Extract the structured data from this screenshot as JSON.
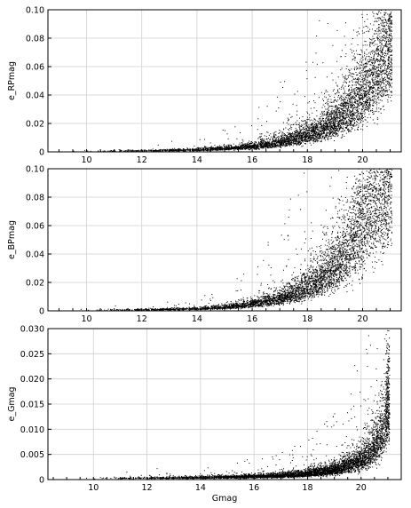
{
  "chart_data": [
    {
      "type": "scatter",
      "title": "",
      "xlabel": "",
      "ylabel": "e_RPmag",
      "xlim": [
        8.6,
        21.4
      ],
      "ylim": [
        0,
        0.1
      ],
      "xticks": [
        10,
        12,
        14,
        16,
        18,
        20
      ],
      "xtick_labels": [
        "10",
        "12",
        "14",
        "16",
        "18",
        "20"
      ],
      "yticks": [
        0,
        0.02,
        0.04,
        0.06,
        0.08,
        0.1
      ],
      "ytick_labels": [
        "0",
        "0.02",
        "0.04",
        "0.06",
        "0.08",
        "0.10"
      ],
      "grid": true,
      "point_color": "#000000",
      "trend": {
        "description": "error grows roughly exponentially with magnitude",
        "x": [
          9,
          12,
          14,
          15,
          16,
          17,
          18,
          19,
          19.5,
          20,
          20.5,
          21
        ],
        "y": [
          0.0005,
          0.0008,
          0.0015,
          0.0025,
          0.004,
          0.007,
          0.012,
          0.022,
          0.03,
          0.042,
          0.058,
          0.08
        ]
      }
    },
    {
      "type": "scatter",
      "title": "",
      "xlabel": "",
      "ylabel": "e_BPmag",
      "xlim": [
        8.6,
        21.4
      ],
      "ylim": [
        0,
        0.1
      ],
      "xticks": [
        10,
        12,
        14,
        16,
        18,
        20
      ],
      "xtick_labels": [
        "10",
        "12",
        "14",
        "16",
        "18",
        "20"
      ],
      "yticks": [
        0,
        0.02,
        0.04,
        0.06,
        0.08,
        0.1
      ],
      "ytick_labels": [
        "0",
        "0.02",
        "0.04",
        "0.06",
        "0.08",
        "0.10"
      ],
      "grid": true,
      "point_color": "#000000",
      "trend": {
        "description": "error grows roughly exponentially with magnitude",
        "x": [
          9,
          12,
          14,
          15,
          16,
          17,
          18,
          19,
          19.5,
          20,
          20.5,
          21
        ],
        "y": [
          0.0005,
          0.0008,
          0.0015,
          0.0025,
          0.005,
          0.009,
          0.017,
          0.032,
          0.045,
          0.065,
          0.085,
          0.1
        ]
      }
    },
    {
      "type": "scatter",
      "title": "",
      "xlabel": "Gmag",
      "ylabel": "e_Gmag",
      "xlim": [
        8.3,
        21.5
      ],
      "ylim": [
        0,
        0.03
      ],
      "xticks": [
        10,
        12,
        14,
        16,
        18,
        20
      ],
      "xtick_labels": [
        "10",
        "12",
        "14",
        "16",
        "18",
        "20"
      ],
      "yticks": [
        0,
        0.005,
        0.01,
        0.015,
        0.02,
        0.025,
        0.03
      ],
      "ytick_labels": [
        "0",
        "0.005",
        "0.010",
        "0.015",
        "0.020",
        "0.025",
        "0.030"
      ],
      "grid": true,
      "point_color": "#000000",
      "trend": {
        "description": "error rises slowly then steeply near G=21",
        "x": [
          9,
          12,
          14,
          16,
          17,
          18,
          19,
          19.5,
          20,
          20.5,
          20.8,
          21
        ],
        "y": [
          0.0002,
          0.0003,
          0.0004,
          0.0006,
          0.0008,
          0.0012,
          0.002,
          0.0028,
          0.004,
          0.0065,
          0.01,
          0.016
        ]
      }
    }
  ]
}
